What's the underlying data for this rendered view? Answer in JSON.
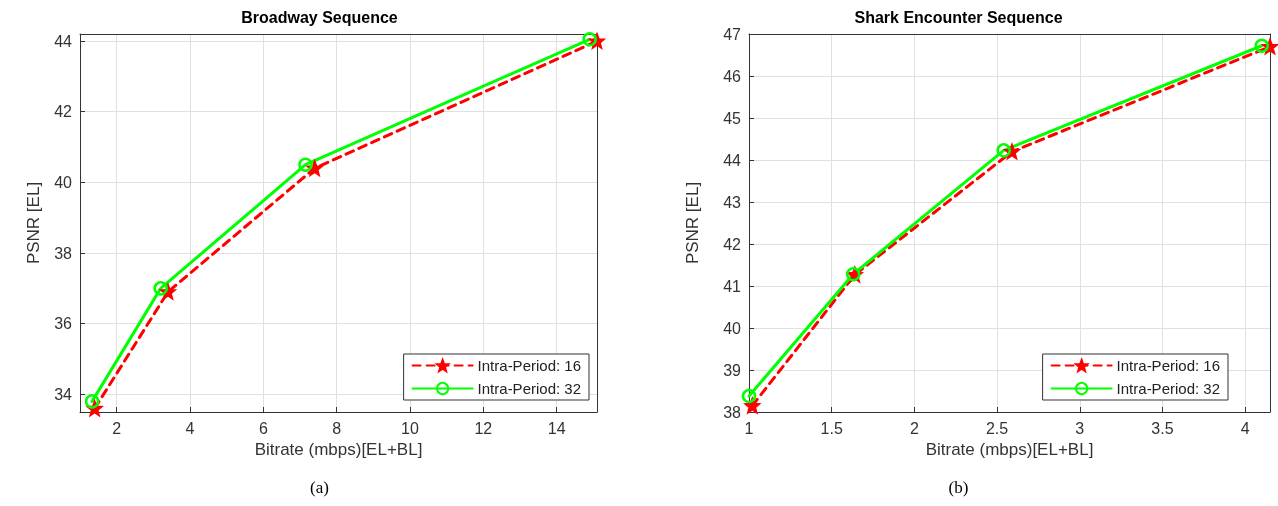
{
  "chart_data": [
    {
      "type": "line",
      "title": "Broadway Sequence",
      "xlabel": "Bitrate (mbps)[EL+BL]",
      "ylabel": "PSNR [EL]",
      "xlim": [
        1,
        15.1
      ],
      "xticks": [
        2,
        4,
        6,
        8,
        10,
        12,
        14
      ],
      "ylim": [
        33.5,
        44.2
      ],
      "yticks": [
        34,
        36,
        38,
        40,
        42,
        44
      ],
      "grid": true,
      "legend": "bottom right",
      "annotations": [
        "(a)"
      ],
      "series": [
        {
          "name": "Intra-Period: 16",
          "color": "#ff0000",
          "marker": "star",
          "line_style": "dashed",
          "x": [
            1.4,
            3.4,
            7.4,
            15.1
          ],
          "values": [
            33.6,
            36.9,
            40.4,
            44.0
          ]
        },
        {
          "name": "Intra-Period: 32",
          "color": "#00ff00",
          "marker": "circle",
          "line_style": "solid",
          "x": [
            1.33,
            3.2,
            7.15,
            14.9
          ],
          "values": [
            33.8,
            37.0,
            40.5,
            44.05
          ]
        }
      ]
    },
    {
      "type": "line",
      "title": "Shark Encounter Sequence",
      "xlabel": "Bitrate (mbps)[EL+BL]",
      "ylabel": "PSNR [EL]",
      "xlim": [
        1,
        4.15
      ],
      "xticks": [
        1,
        1.5,
        2,
        2.5,
        3,
        3.5,
        4
      ],
      "ylim": [
        38,
        47
      ],
      "yticks": [
        38,
        39,
        40,
        41,
        42,
        43,
        44,
        45,
        46,
        47
      ],
      "grid": true,
      "legend": "bottom right",
      "annotations": [
        "(b)"
      ],
      "series": [
        {
          "name": "Intra-Period: 16",
          "color": "#ff0000",
          "marker": "star",
          "line_style": "dashed",
          "x": [
            1.02,
            1.64,
            2.59,
            4.15
          ],
          "values": [
            38.15,
            41.27,
            44.2,
            46.7
          ]
        },
        {
          "name": "Intra-Period: 32",
          "color": "#00ff00",
          "marker": "circle",
          "line_style": "solid",
          "x": [
            1.0,
            1.63,
            2.54,
            4.1
          ],
          "values": [
            38.38,
            41.28,
            44.23,
            46.72
          ]
        }
      ]
    }
  ]
}
